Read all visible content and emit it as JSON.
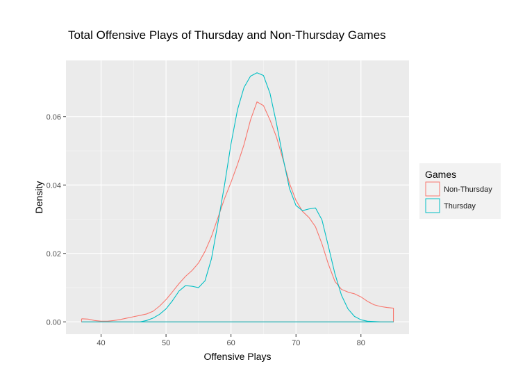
{
  "chart_data": {
    "type": "density",
    "title": "Total Offensive Plays of Thursday and Non-Thursday Games",
    "xlabel": "Offensive Plays",
    "ylabel": "Density",
    "xlim": [
      34.6,
      87.4
    ],
    "ylim": [
      -0.0036,
      0.0764
    ],
    "x_ticks": [
      40,
      50,
      60,
      70,
      80
    ],
    "y_ticks": [
      0,
      0.02,
      0.04,
      0.06
    ],
    "x_tick_labels": [
      "40",
      "50",
      "60",
      "70",
      "80"
    ],
    "y_tick_labels": [
      "0.00",
      "0.02",
      "0.04",
      "0.06"
    ],
    "grid": true,
    "legend": {
      "title": "Games",
      "placement": "right"
    },
    "series": [
      {
        "name": "Non-Thursday",
        "color": "#F8766D",
        "points": [
          [
            37,
            0.0009
          ],
          [
            38,
            0.0008
          ],
          [
            39,
            0.0004
          ],
          [
            40,
            0.0002
          ],
          [
            41,
            0.0002
          ],
          [
            42,
            0.0004
          ],
          [
            43,
            0.0007
          ],
          [
            44,
            0.0011
          ],
          [
            45,
            0.0015
          ],
          [
            46,
            0.0019
          ],
          [
            47,
            0.0023
          ],
          [
            48,
            0.0031
          ],
          [
            49,
            0.0046
          ],
          [
            50,
            0.0065
          ],
          [
            51,
            0.0088
          ],
          [
            52,
            0.0112
          ],
          [
            53,
            0.0133
          ],
          [
            54,
            0.015
          ],
          [
            55,
            0.0172
          ],
          [
            56,
            0.0206
          ],
          [
            57,
            0.025
          ],
          [
            58,
            0.0305
          ],
          [
            59,
            0.036
          ],
          [
            60,
            0.0408
          ],
          [
            61,
            0.046
          ],
          [
            62,
            0.0518
          ],
          [
            63,
            0.059
          ],
          [
            64,
            0.0643
          ],
          [
            65,
            0.0632
          ],
          [
            66,
            0.059
          ],
          [
            67,
            0.054
          ],
          [
            68,
            0.0475
          ],
          [
            69,
            0.0405
          ],
          [
            70,
            0.0355
          ],
          [
            71,
            0.0323
          ],
          [
            72,
            0.0305
          ],
          [
            73,
            0.0278
          ],
          [
            74,
            0.0228
          ],
          [
            75,
            0.0168
          ],
          [
            76,
            0.0118
          ],
          [
            77,
            0.0095
          ],
          [
            78,
            0.0087
          ],
          [
            79,
            0.0082
          ],
          [
            80,
            0.0073
          ],
          [
            81,
            0.006
          ],
          [
            82,
            0.005
          ],
          [
            83,
            0.0045
          ],
          [
            84,
            0.0042
          ],
          [
            85,
            0.004
          ],
          [
            85,
            0
          ]
        ]
      },
      {
        "name": "Thursday",
        "color": "#00BFC4",
        "points": [
          [
            37,
            0
          ],
          [
            46,
            0
          ],
          [
            47,
            0.0004
          ],
          [
            48,
            0.0011
          ],
          [
            49,
            0.0022
          ],
          [
            50,
            0.0038
          ],
          [
            51,
            0.0062
          ],
          [
            52,
            0.009
          ],
          [
            53,
            0.0106
          ],
          [
            54,
            0.0104
          ],
          [
            55,
            0.01
          ],
          [
            56,
            0.012
          ],
          [
            57,
            0.0185
          ],
          [
            58,
            0.029
          ],
          [
            59,
            0.04
          ],
          [
            60,
            0.052
          ],
          [
            61,
            0.062
          ],
          [
            62,
            0.0685
          ],
          [
            63,
            0.0718
          ],
          [
            64,
            0.0728
          ],
          [
            65,
            0.072
          ],
          [
            66,
            0.0668
          ],
          [
            67,
            0.058
          ],
          [
            68,
            0.048
          ],
          [
            69,
            0.039
          ],
          [
            70,
            0.034
          ],
          [
            71,
            0.0325
          ],
          [
            72,
            0.033
          ],
          [
            73,
            0.0333
          ],
          [
            74,
            0.0298
          ],
          [
            75,
            0.022
          ],
          [
            76,
            0.014
          ],
          [
            77,
            0.0078
          ],
          [
            78,
            0.0038
          ],
          [
            79,
            0.0016
          ],
          [
            80,
            0.0006
          ],
          [
            81,
            0.0002
          ],
          [
            82,
            0.0001
          ],
          [
            83,
            0
          ],
          [
            85,
            0
          ]
        ]
      }
    ]
  }
}
